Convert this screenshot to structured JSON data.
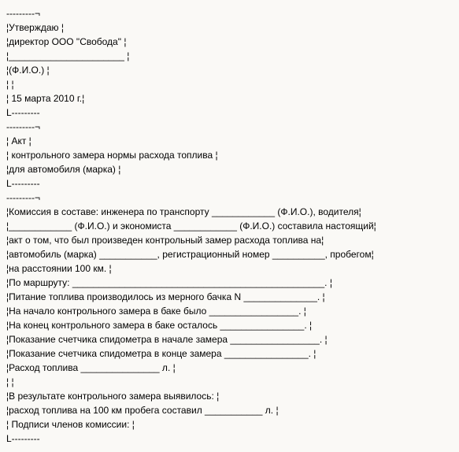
{
  "lines": [
    "---------¬",
    "¦Утверждаю ¦",
    "¦директор ООО \"Свобода\" ¦",
    "¦______________________ ¦",
    "¦(Ф.И.О.) ¦",
    "¦ ¦",
    "¦ 15 марта 2010 г.¦",
    "L---------",
    "---------¬",
    "¦ Акт ¦",
    "¦ контрольного замера нормы расхода топлива ¦",
    "¦для автомобиля (марка) ¦",
    "L---------",
    "---------¬",
    "¦Комиссия в составе: инженера по транспорту ____________ (Ф.И.О.), водителя¦",
    "¦____________ (Ф.И.О.) и экономиста ____________ (Ф.И.О.) составила настоящий¦",
    "¦акт о том, что был произведен контрольный замер расхода топлива на¦",
    "¦автомобиль (марка) ___________, регистрационный номер __________, пробегом¦",
    "¦на расстоянии 100 км. ¦",
    "¦По маршруту: ________________________________________________. ¦",
    "¦Питание топлива производилось из мерного бачка N ______________. ¦",
    "¦На начало контрольного замера в баке было _________________. ¦",
    "¦На конец контрольного замера в баке осталось ________________. ¦",
    "¦Показание счетчика спидометра в начале замера _________________. ¦",
    "¦Показание счетчика спидометра в конце замера ________________. ¦",
    "¦Расход топлива _______________ л. ¦",
    "¦ ¦",
    "¦В результате контрольного замера выявилось: ¦",
    "¦расход топлива на 100 км пробега составил ___________ л. ¦",
    "¦ Подписи членов комиссии: ¦",
    "L---------"
  ]
}
